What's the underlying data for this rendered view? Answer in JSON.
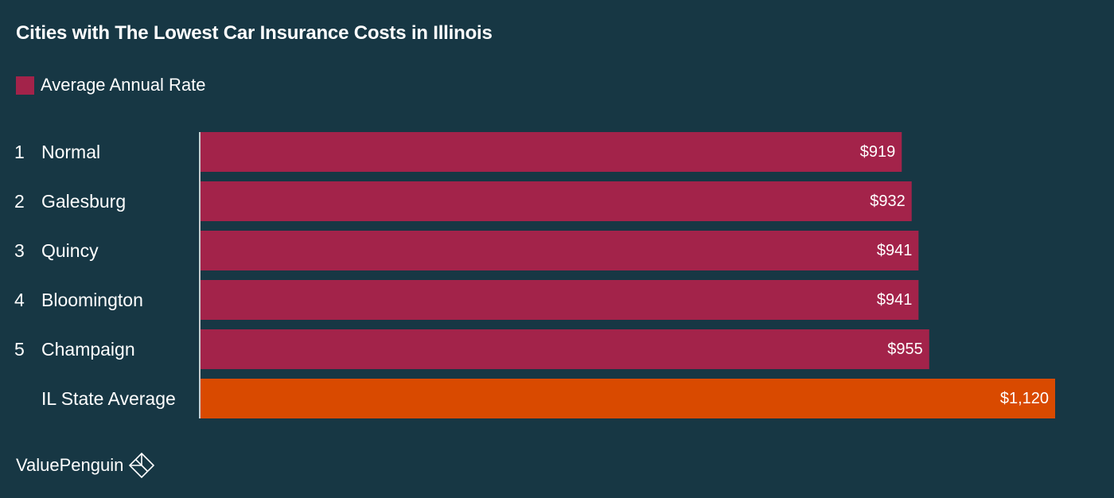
{
  "colors": {
    "background": "#173744",
    "city_bar": "#A3234A",
    "average_bar": "#D94A00",
    "text": "#FFFFFF",
    "axis": "#FFFFFF"
  },
  "chart_data": {
    "type": "bar",
    "orientation": "horizontal",
    "title": "Cities with The Lowest Car Insurance Costs in Illinois",
    "legend": [
      {
        "label": "Average Annual Rate",
        "color": "#A3234A"
      }
    ],
    "legend_position": "top-left",
    "grid": false,
    "xlim": [
      0,
      1120
    ],
    "rows": [
      {
        "rank": "1",
        "label": "Normal",
        "value": 919,
        "value_label": "$919",
        "highlight": false
      },
      {
        "rank": "2",
        "label": "Galesburg",
        "value": 932,
        "value_label": "$932",
        "highlight": false
      },
      {
        "rank": "3",
        "label": "Quincy",
        "value": 941,
        "value_label": "$941",
        "highlight": false
      },
      {
        "rank": "4",
        "label": "Bloomington",
        "value": 941,
        "value_label": "$941",
        "highlight": false
      },
      {
        "rank": "5",
        "label": "Champaign",
        "value": 955,
        "value_label": "$955",
        "highlight": false
      },
      {
        "rank": "",
        "label": "IL State Average",
        "value": 1120,
        "value_label": "$1,120",
        "highlight": true
      }
    ]
  },
  "branding": {
    "logo_text": "ValuePenguin",
    "logo_icon": "valuepenguin-diamond-icon"
  }
}
